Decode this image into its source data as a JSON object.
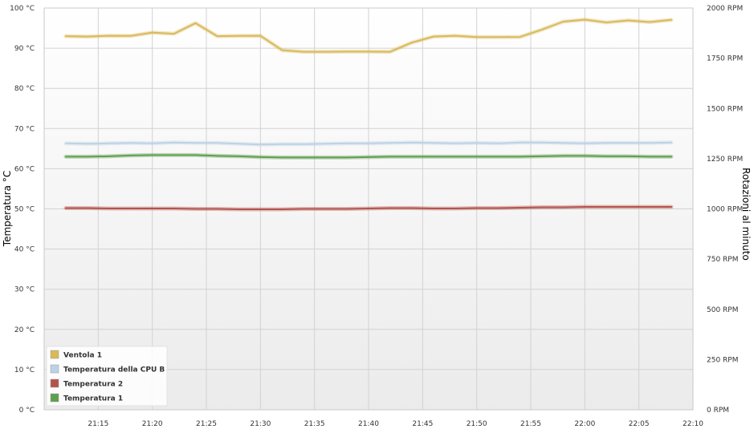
{
  "chart_data": {
    "type": "line",
    "x_unit": "time",
    "x_ticks": [
      "21:15",
      "21:20",
      "21:25",
      "21:30",
      "21:35",
      "21:40",
      "21:45",
      "21:50",
      "21:55",
      "22:00",
      "22:05",
      "22:10"
    ],
    "x_range": [
      "21:10",
      "22:10"
    ],
    "x": [
      "21:12",
      "21:14",
      "21:16",
      "21:18",
      "21:20",
      "21:22",
      "21:24",
      "21:26",
      "21:28",
      "21:30",
      "21:32",
      "21:34",
      "21:36",
      "21:38",
      "21:40",
      "21:42",
      "21:44",
      "21:46",
      "21:48",
      "21:50",
      "21:52",
      "21:54",
      "21:56",
      "21:58",
      "22:00",
      "22:02",
      "22:04",
      "22:06",
      "22:08"
    ],
    "y_left": {
      "label": "Temperatura °C",
      "range": [
        0,
        100
      ],
      "ticks": [
        "0 °C",
        "10 °C",
        "20 °C",
        "30 °C",
        "40 °C",
        "50 °C",
        "60 °C",
        "70 °C",
        "80 °C",
        "90 °C",
        "100 °C"
      ]
    },
    "y_right": {
      "label": "Rotazioni al minuto",
      "range": [
        0,
        2000
      ],
      "ticks": [
        "0 RPM",
        "250 RPM",
        "500 RPM",
        "750 RPM",
        "1000 RPM",
        "1250 RPM",
        "1500 RPM",
        "1750 RPM",
        "2000 RPM"
      ]
    },
    "grid": true,
    "legend_position": "bottom-left",
    "series": [
      {
        "name": "Ventola 1",
        "axis": "right",
        "color": "#d9b95a",
        "values": [
          1860,
          1858,
          1862,
          1861,
          1878,
          1872,
          1925,
          1860,
          1861,
          1862,
          1790,
          1782,
          1782,
          1783,
          1783,
          1782,
          1828,
          1858,
          1862,
          1855,
          1855,
          1856,
          1892,
          1932,
          1942,
          1928,
          1938,
          1930,
          1941
        ]
      },
      {
        "name": "Temperatura della CPU B",
        "axis": "left",
        "color": "#bcd2e6",
        "values": [
          66.3,
          66.2,
          66.3,
          66.4,
          66.3,
          66.5,
          66.4,
          66.4,
          66.2,
          66.0,
          66.1,
          66.1,
          66.2,
          66.3,
          66.3,
          66.4,
          66.5,
          66.4,
          66.3,
          66.4,
          66.3,
          66.5,
          66.5,
          66.4,
          66.3,
          66.4,
          66.4,
          66.4,
          66.5
        ]
      },
      {
        "name": "Temperatura 2",
        "axis": "left",
        "color": "#b5534b",
        "values": [
          50.2,
          50.2,
          50.1,
          50.1,
          50.1,
          50.1,
          50.0,
          50.0,
          49.9,
          49.9,
          49.9,
          50.0,
          50.0,
          50.0,
          50.1,
          50.2,
          50.2,
          50.1,
          50.1,
          50.2,
          50.2,
          50.3,
          50.4,
          50.4,
          50.5,
          50.5,
          50.5,
          50.5,
          50.5
        ]
      },
      {
        "name": "Temperatura 1",
        "axis": "left",
        "color": "#5f9f4f",
        "values": [
          63.0,
          63.0,
          63.1,
          63.3,
          63.4,
          63.4,
          63.4,
          63.2,
          63.1,
          62.9,
          62.8,
          62.8,
          62.8,
          62.8,
          62.9,
          63.0,
          63.0,
          63.0,
          63.0,
          63.0,
          63.0,
          63.0,
          63.1,
          63.2,
          63.2,
          63.1,
          63.1,
          63.0,
          63.0
        ]
      }
    ]
  }
}
